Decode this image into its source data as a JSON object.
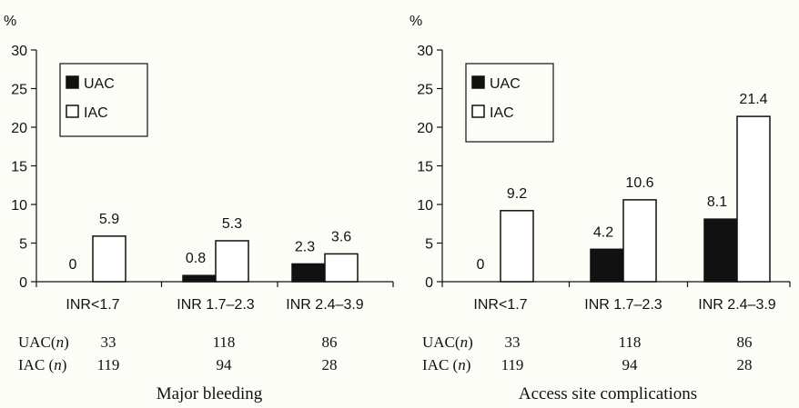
{
  "chart_data": [
    {
      "type": "bar",
      "yunit": "%",
      "ylim": [
        0,
        30
      ],
      "yticks": [
        0,
        5,
        10,
        15,
        20,
        25,
        30
      ],
      "categories": [
        "INR<1.7",
        "INR 1.7–2.3",
        "INR 2.4–3.9"
      ],
      "series": [
        {
          "name": "UAC",
          "color": "#111111",
          "values": [
            0,
            0.8,
            2.3
          ],
          "labels": [
            "0",
            "0.8",
            "2.3"
          ]
        },
        {
          "name": "IAC",
          "color": "#ffffff",
          "values": [
            5.9,
            5.3,
            3.6
          ],
          "labels": [
            "5.9",
            "5.3",
            "3.6"
          ]
        }
      ],
      "n_table": [
        {
          "label_prefix": "UAC(",
          "label_var": "n",
          "label_suffix": ")",
          "values": [
            "33",
            "118",
            "86"
          ]
        },
        {
          "label_prefix": "IAC (",
          "label_var": "n",
          "label_suffix": ")",
          "values": [
            "119",
            "94",
            "28"
          ]
        }
      ],
      "caption": "Major bleeding",
      "legend": "top-left",
      "grid": false
    },
    {
      "type": "bar",
      "yunit": "%",
      "ylim": [
        0,
        30
      ],
      "yticks": [
        0,
        5,
        10,
        15,
        20,
        25,
        30
      ],
      "categories": [
        "INR<1.7",
        "INR 1.7–2.3",
        "INR 2.4–3.9"
      ],
      "series": [
        {
          "name": "UAC",
          "color": "#111111",
          "values": [
            0,
            4.2,
            8.1
          ],
          "labels": [
            "0",
            "4.2",
            "8.1"
          ]
        },
        {
          "name": "IAC",
          "color": "#ffffff",
          "values": [
            9.2,
            10.6,
            21.4
          ],
          "labels": [
            "9.2",
            "10.6",
            "21.4"
          ]
        }
      ],
      "n_table": [
        {
          "label_prefix": "UAC(",
          "label_var": "n",
          "label_suffix": ")",
          "values": [
            "33",
            "118",
            "86"
          ]
        },
        {
          "label_prefix": "IAC (",
          "label_var": "n",
          "label_suffix": ")",
          "values": [
            "119",
            "94",
            "28"
          ]
        }
      ],
      "caption": "Access site complications",
      "legend": "top-left",
      "grid": false
    }
  ]
}
